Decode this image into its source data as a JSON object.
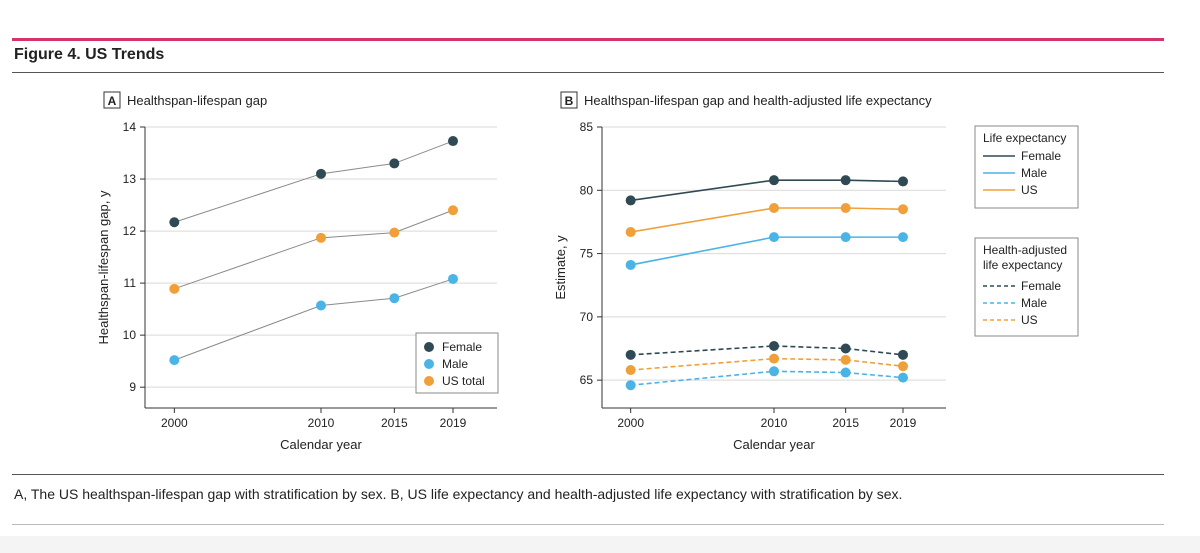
{
  "figure": {
    "title": "Figure 4. US Trends",
    "caption": "A, The US healthspan-lifespan gap with stratification by sex. B, US life expectancy and health-adjusted life expectancy with stratification by sex."
  },
  "colors": {
    "accent": "#d6336c",
    "female": "#2f4a55",
    "male": "#4bb4e6",
    "us": "#f0a03a",
    "connector": "#8a8a8a",
    "grid": "#d9d9d9"
  },
  "chart_data": [
    {
      "panel": "A",
      "type": "scatter",
      "title": "Healthspan-lifespan gap",
      "xlabel": "Calendar year",
      "ylabel": "Healthspan-lifespan gap, y",
      "x": [
        2000,
        2010,
        2015,
        2019
      ],
      "xticks": [
        "2000",
        "2010",
        "2015",
        "2019"
      ],
      "xlim": [
        1998,
        2022
      ],
      "ylim": [
        8.6,
        14
      ],
      "yticks": [
        9,
        10,
        11,
        12,
        13,
        14
      ],
      "grid": true,
      "series": [
        {
          "name": "Female",
          "key": "female",
          "values": [
            12.17,
            13.1,
            13.3,
            13.73
          ]
        },
        {
          "name": "Male",
          "key": "male",
          "values": [
            9.52,
            10.57,
            10.71,
            11.08
          ]
        },
        {
          "name": "US total",
          "key": "us",
          "values": [
            10.89,
            11.87,
            11.97,
            12.4
          ]
        }
      ],
      "legend": {
        "position": "bottom-right",
        "entries": [
          "Female",
          "Male",
          "US total"
        ]
      }
    },
    {
      "panel": "B",
      "type": "line",
      "title": "Healthspan-lifespan gap and health-adjusted life expectancy",
      "xlabel": "Calendar year",
      "ylabel": "Estimate, y",
      "x": [
        2000,
        2010,
        2015,
        2019
      ],
      "xticks": [
        "2000",
        "2010",
        "2015",
        "2019"
      ],
      "xlim": [
        1998,
        2022
      ],
      "ylim": [
        62.8,
        85
      ],
      "yticks": [
        65,
        70,
        75,
        80,
        85
      ],
      "grid": true,
      "series": [
        {
          "name": "Female",
          "group": "Life expectancy",
          "key": "female",
          "style": "solid",
          "values": [
            79.2,
            80.8,
            80.8,
            80.7
          ]
        },
        {
          "name": "Male",
          "group": "Life expectancy",
          "key": "male",
          "style": "solid",
          "values": [
            74.1,
            76.3,
            76.3,
            76.3
          ]
        },
        {
          "name": "US",
          "group": "Life expectancy",
          "key": "us",
          "style": "solid",
          "values": [
            76.7,
            78.6,
            78.6,
            78.5
          ]
        },
        {
          "name": "Female",
          "group": "Health-adjusted life expectancy",
          "key": "female",
          "style": "dashed",
          "values": [
            67.0,
            67.7,
            67.5,
            67.0
          ]
        },
        {
          "name": "Male",
          "group": "Health-adjusted life expectancy",
          "key": "male",
          "style": "dashed",
          "values": [
            64.6,
            65.7,
            65.6,
            65.2
          ]
        },
        {
          "name": "US",
          "group": "Health-adjusted life expectancy",
          "key": "us",
          "style": "dashed",
          "values": [
            65.8,
            66.7,
            66.6,
            66.1
          ]
        }
      ],
      "legends": [
        {
          "title": "Life expectancy",
          "entries": [
            "Female",
            "Male",
            "US"
          ]
        },
        {
          "title_lines": [
            "Health-adjusted",
            "life expectancy"
          ],
          "entries": [
            "Female",
            "Male",
            "US"
          ]
        }
      ]
    }
  ]
}
